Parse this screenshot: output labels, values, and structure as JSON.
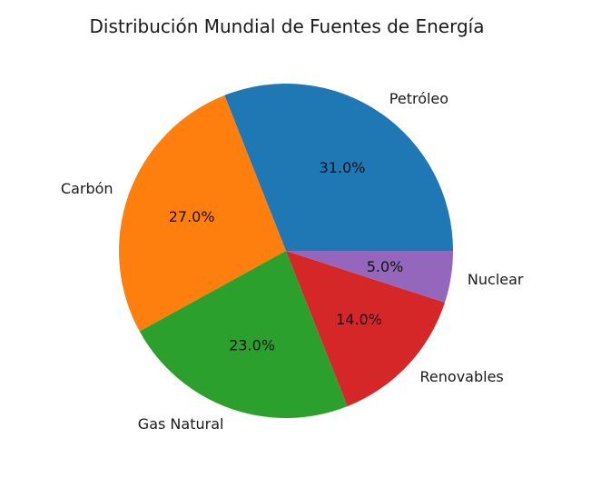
{
  "chart_data": {
    "type": "pie",
    "title": "Distribución Mundial de Fuentes de Energía",
    "categories": [
      "Petróleo",
      "Carbón",
      "Gas Natural",
      "Renovables",
      "Nuclear"
    ],
    "values": [
      31.0,
      27.0,
      23.0,
      14.0,
      5.0
    ],
    "percent_labels": [
      "31.0%",
      "27.0%",
      "23.0%",
      "14.0%",
      "5.0%"
    ],
    "colors": [
      "#1f77b4",
      "#ff7f0e",
      "#2ca02c",
      "#d62728",
      "#9467bd"
    ],
    "start_angle": "east",
    "direction": "counterclockwise",
    "legend": "none"
  }
}
